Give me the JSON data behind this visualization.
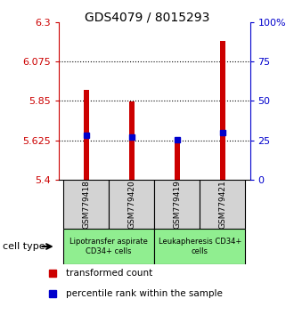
{
  "title": "GDS4079 / 8015293",
  "samples": [
    "GSM779418",
    "GSM779420",
    "GSM779419",
    "GSM779421"
  ],
  "red_values": [
    5.91,
    5.845,
    5.632,
    6.19
  ],
  "blue_values": [
    5.652,
    5.645,
    5.627,
    5.668
  ],
  "ymin": 5.4,
  "ymax": 6.3,
  "yticks_left": [
    5.4,
    5.625,
    5.85,
    6.075,
    6.3
  ],
  "yticks_right": [
    0,
    25,
    50,
    75,
    100
  ],
  "yticks_right_labels": [
    "0",
    "25",
    "50",
    "75",
    "100%"
  ],
  "group1_label": "Lipotransfer aspirate\nCD34+ cells",
  "group2_label": "Leukapheresis CD34+\ncells",
  "group1_color": "#d3d3d3",
  "group2_color": "#90ee90",
  "bar_color": "#cc0000",
  "blue_color": "#0000cc",
  "left_axis_color": "#cc0000",
  "right_axis_color": "#0000cc",
  "bar_width": 0.12,
  "legend_red_label": "transformed count",
  "legend_blue_label": "percentile rank within the sample",
  "cell_type_label": "cell type"
}
